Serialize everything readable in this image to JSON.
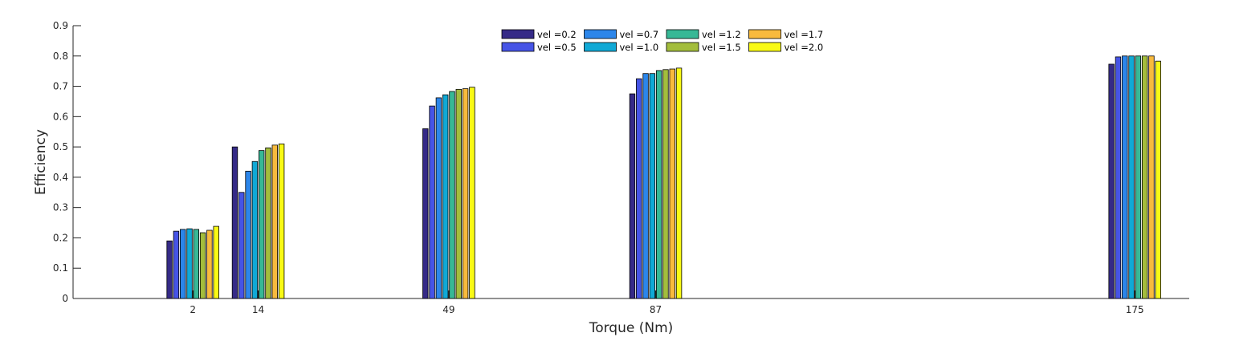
{
  "chart_data": {
    "type": "bar",
    "title": "",
    "xlabel": "Torque (Nm)",
    "ylabel": "Efficiency",
    "x_scale": "linear",
    "xlim": [
      -20,
      185
    ],
    "ylim": [
      0,
      0.9
    ],
    "yticks": [
      0,
      0.1,
      0.2,
      0.3,
      0.4,
      0.5,
      0.6,
      0.7,
      0.8,
      0.9
    ],
    "ytick_labels": [
      "0",
      "0.1",
      "0.2",
      "0.3",
      "0.4",
      "0.5",
      "0.6",
      "0.7",
      "0.8",
      "0.9"
    ],
    "categories": [
      2,
      14,
      49,
      87,
      175
    ],
    "category_labels": [
      "2",
      "14",
      "49",
      "87",
      "175"
    ],
    "grid": false,
    "legend_position": "top-center",
    "series": [
      {
        "name": "vel =0.2",
        "color": "#352a87",
        "values": [
          0.19,
          0.5,
          0.56,
          0.675,
          0.773
        ]
      },
      {
        "name": "vel =0.5",
        "color": "#4654e6",
        "values": [
          0.222,
          0.35,
          0.635,
          0.725,
          0.797
        ]
      },
      {
        "name": "vel =0.7",
        "color": "#2c86ea",
        "values": [
          0.228,
          0.42,
          0.662,
          0.742,
          0.8
        ]
      },
      {
        "name": "vel =1.0",
        "color": "#10a9d6",
        "values": [
          0.23,
          0.452,
          0.672,
          0.742,
          0.8
        ]
      },
      {
        "name": "vel =1.2",
        "color": "#37b896",
        "values": [
          0.228,
          0.488,
          0.683,
          0.752,
          0.8
        ]
      },
      {
        "name": "vel =1.5",
        "color": "#a3bd3c",
        "values": [
          0.217,
          0.497,
          0.69,
          0.755,
          0.8
        ]
      },
      {
        "name": "vel =1.7",
        "color": "#f8ba3d",
        "values": [
          0.225,
          0.506,
          0.692,
          0.757,
          0.8
        ]
      },
      {
        "name": "vel =2.0",
        "color": "#f9fa15",
        "values": [
          0.238,
          0.51,
          0.697,
          0.76,
          0.783
        ]
      }
    ],
    "legend_layout": {
      "rows": 2,
      "columns": 4
    }
  }
}
